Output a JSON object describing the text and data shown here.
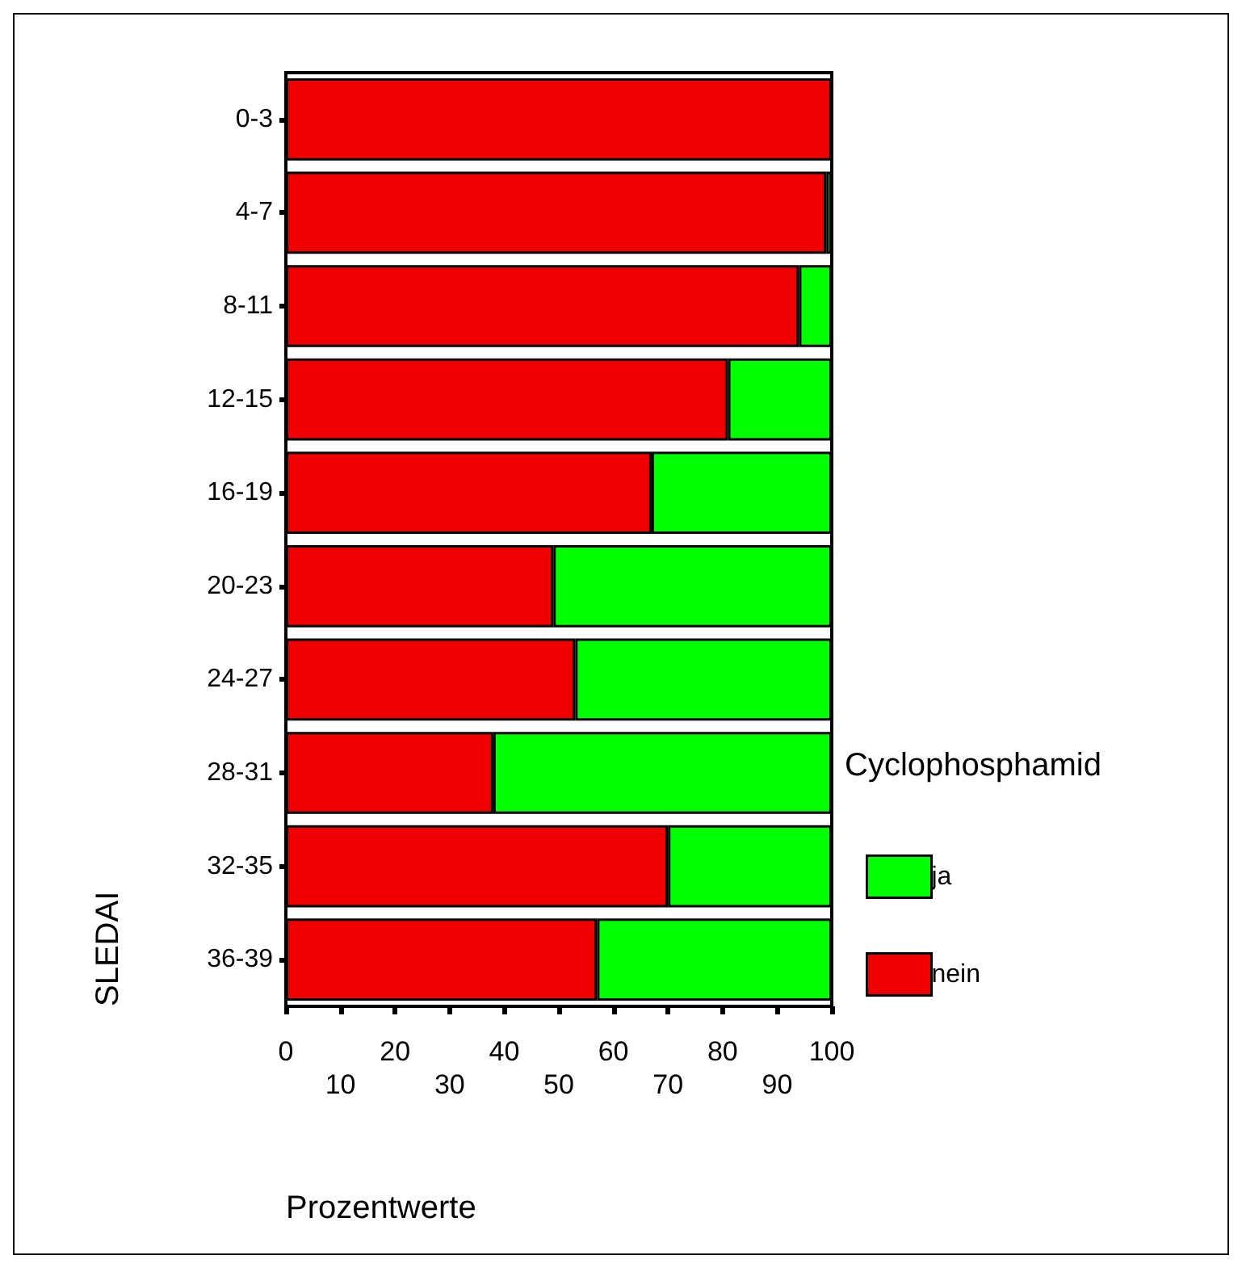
{
  "chart_data": {
    "type": "bar",
    "orientation": "horizontal",
    "stacked": true,
    "xlabel": "Prozentwerte",
    "ylabel": "SLEDAI",
    "legend_title": "Cyclophosphamid",
    "legend": "right",
    "grid": false,
    "categories": [
      "0-3",
      "4-7",
      "8-11",
      "12-15",
      "16-19",
      "20-23",
      "24-27",
      "28-31",
      "32-35",
      "36-39"
    ],
    "series": [
      {
        "name": "nein",
        "color": "#f00000",
        "values": [
          100,
          99,
          94,
          81,
          67,
          49,
          53,
          38,
          70,
          57
        ]
      },
      {
        "name": "ja",
        "color": "#00ff00",
        "values": [
          0,
          1,
          6,
          19,
          33,
          51,
          47,
          62,
          30,
          43
        ]
      }
    ],
    "xlim": [
      0,
      100
    ],
    "xticks": [
      0,
      20,
      40,
      60,
      80,
      100
    ],
    "x2lim": [
      0,
      100
    ],
    "x2ticks": [
      10,
      30,
      50,
      70,
      90
    ]
  }
}
